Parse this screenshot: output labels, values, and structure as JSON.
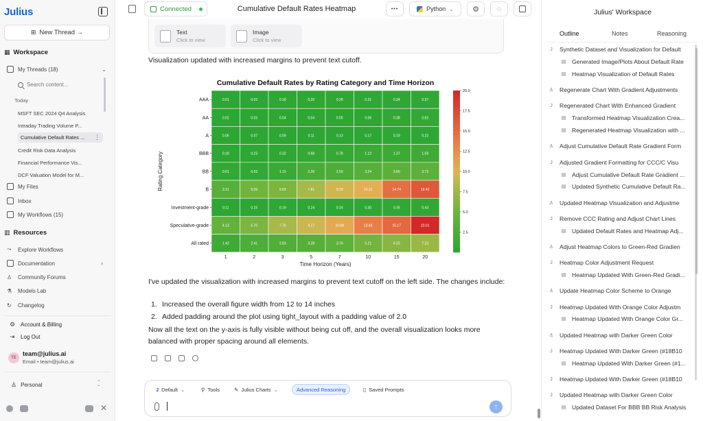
{
  "brand": "Julius",
  "sidebar": {
    "new_thread": "New Thread →",
    "workspace": "Workspace",
    "my_threads": "My Threads (18)",
    "search_placeholder": "Search content...",
    "today": "Today",
    "threads": [
      "MSFT SEC 2024 Q4 Analysis",
      "Intraday Trading Volume P...",
      "Cumulative Default Rates ...",
      "Credit Risk Data Analysis",
      "Financial Performance Vis...",
      "DCF Valuation Model for M..."
    ],
    "my_files": "My Files",
    "inbox": "Inbox",
    "my_workflows": "My Workflows (15)",
    "resources": "Resources",
    "explore_workflows": "Explore Workflows",
    "documentation": "Documentation",
    "community_forums": "Community Forums",
    "models_lab": "Models Lab",
    "changelog": "Changelog",
    "account_billing": "Account & Billing",
    "log_out": "Log Out",
    "avatar_initials": "TE",
    "account_name": "team@julius.ai",
    "account_email": "Email • team@julius.ai",
    "personal": "Personal"
  },
  "topbar": {
    "connected": "Connected",
    "title": "Cumulative Default Rates Heatmap",
    "more": "•••",
    "python": "Python"
  },
  "attachments": {
    "text_title": "Text",
    "text_sub": "Click to view",
    "image_title": "Image",
    "image_sub": "Click to view"
  },
  "messages": {
    "m1": "Visualization updated with increased margins to prevent text cutoff.",
    "m2": "I've updated the visualization with increased margins to prevent text cutoff on the left side. The changes include:",
    "li1": "Increased the overall figure width from 12 to 14 inches",
    "li2": "Added padding around the plot using tight_layout with a padding value of 2.0",
    "m3": "Now all the text on the y-axis is fully visible without being cut off, and the overall visualization looks more balanced with proper spacing around all elements.",
    "li_n1": "1.",
    "li_n2": "2."
  },
  "composer": {
    "default": "Default",
    "tools": "Tools",
    "julius_charts": "Julius Charts",
    "advanced_reasoning": "Advanced Reasoning",
    "saved_prompts": "Saved Prompts"
  },
  "right_panel": {
    "title": "Julius' Workspace",
    "tabs": [
      "Outline",
      "Notes",
      "Reasoning"
    ],
    "items": [
      {
        "text": "Synthetic Dataset and Visualization for Default",
        "glyph": "J",
        "indent": 0
      },
      {
        "text": "Generated Image/Plots About Default Rate",
        "glyph": "▤",
        "indent": 1
      },
      {
        "text": "Heatmap Visualization of Default Rates",
        "glyph": "▤",
        "indent": 1
      },
      {
        "text": "Regenerate Chart With Gradient Adjustments",
        "glyph": "♙",
        "indent": 0
      },
      {
        "text": "Regenerated Chart With Enhanced Gradient",
        "glyph": "J",
        "indent": 0
      },
      {
        "text": "Transformed Heatmap Visualization Crea...",
        "glyph": "▤",
        "indent": 1
      },
      {
        "text": "Regenerated Heatmap Visualization with ...",
        "glyph": "▤",
        "indent": 1
      },
      {
        "text": "Adjust Cumulative Default Rate Gradient Form",
        "glyph": "♙",
        "indent": 0
      },
      {
        "text": "Adjusted Gradient Formatting for CCC/C Visu",
        "glyph": "J",
        "indent": 0
      },
      {
        "text": "Adjust Cumulative Default Rate Gradient ...",
        "glyph": "▤",
        "indent": 1
      },
      {
        "text": "Updated Synthetic Cumulative Default Ra...",
        "glyph": "▤",
        "indent": 1
      },
      {
        "text": "Updated Heatmap Visualization and Adjustme",
        "glyph": "♙",
        "indent": 0
      },
      {
        "text": "Remove CCC Rating and Adjust Chart Lines",
        "glyph": "J",
        "indent": 0
      },
      {
        "text": "Updated Default Rates and Heatmap Adj...",
        "glyph": "▤",
        "indent": 1
      },
      {
        "text": "Adjust Heatmap Colors to Green-Red Gradien",
        "glyph": "♙",
        "indent": 0
      },
      {
        "text": "Heatmap Color Adjustment Request",
        "glyph": "J",
        "indent": 0
      },
      {
        "text": "Heatmap Updated With Green-Red Gradi...",
        "glyph": "▤",
        "indent": 1
      },
      {
        "text": "Update Heatmap Color Scheme to Orange",
        "glyph": "♙",
        "indent": 0
      },
      {
        "text": "Heatmap Updated With Orange Color Adjustm",
        "glyph": "J",
        "indent": 0
      },
      {
        "text": "Heatmap Updated With Orange Color Gr...",
        "glyph": "▤",
        "indent": 1
      },
      {
        "text": "Updated Heatmap with Darker Green Color",
        "glyph": "♙",
        "indent": 0
      },
      {
        "text": "Heatmap Updated With Darker Green (#18B10",
        "glyph": "J",
        "indent": 0
      },
      {
        "text": "Heatmap Updated With Darker Green (#1...",
        "glyph": "▤",
        "indent": 1
      },
      {
        "text": "Heatmap Updated With Darker Green (#18B10",
        "glyph": "J",
        "indent": 0
      },
      {
        "text": "Updated Heatmap with Darker Green Color",
        "glyph": "J",
        "indent": 0
      },
      {
        "text": "Updated Dataset For BBB BB Risk Analysis",
        "glyph": "▤",
        "indent": 1
      }
    ]
  },
  "colors": {
    "brand": "#1a5fd0",
    "connected": "#2e9a47",
    "accent": "#2c5fd1"
  },
  "chart_data": {
    "type": "heatmap",
    "title": "Cumulative Default Rates by Rating Category and Time Horizon",
    "xlabel": "Time Horizon (Years)",
    "ylabel": "Rating Category",
    "colorbar_label": "Cumulative Default Rate (%)",
    "colorbar_ticks": [
      "2.5",
      "5.0",
      "7.5",
      "10.0",
      "12.5",
      "15.0",
      "17.5",
      "20.0"
    ],
    "colorbar_range": [
      0,
      20
    ],
    "x": [
      "1",
      "2",
      "3",
      "5",
      "7",
      "10",
      "15",
      "20"
    ],
    "y": [
      "AAA",
      "AA",
      "A",
      "BBB",
      "BB",
      "B",
      "Investment-grade",
      "Speculative-grade",
      "All rated"
    ],
    "values": [
      [
        0.01,
        0.02,
        0.18,
        0.2,
        0.28,
        0.31,
        0.34,
        0.37
      ],
      [
        0.02,
        0.03,
        0.04,
        0.04,
        0.05,
        0.06,
        0.38,
        0.62
      ],
      [
        0.05,
        0.07,
        0.09,
        0.11,
        0.13,
        0.17,
        0.19,
        0.22
      ],
      [
        0.18,
        0.23,
        0.32,
        0.68,
        0.78,
        1.12,
        1.37,
        1.59
      ],
      [
        0.61,
        0.63,
        1.15,
        2.26,
        2.5,
        3.24,
        3.6,
        3.73
      ],
      [
        3.31,
        5.09,
        5.69,
        7.81,
        9.29,
        10.31,
        14.74,
        16.42
      ],
      [
        0.11,
        0.15,
        0.19,
        0.24,
        0.24,
        0.3,
        0.35,
        0.43
      ],
      [
        4.13,
        5.7,
        7.78,
        9.17,
        10.68,
        13.46,
        15.17,
        20.01
      ],
      [
        1.42,
        2.41,
        2.83,
        3.28,
        3.76,
        5.21,
        6.25,
        7.23
      ]
    ]
  }
}
